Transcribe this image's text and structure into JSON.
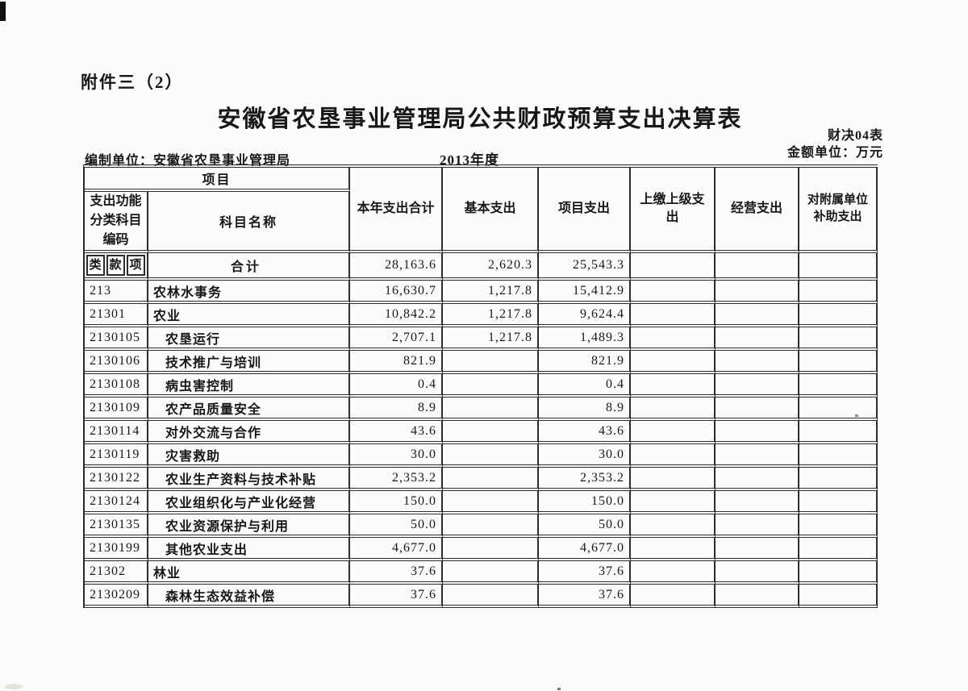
{
  "page": {
    "attachment_label": "附件三（2）",
    "title": "安徽省农垦事业管理局公共财政预算支出决算表",
    "form_code": "财决04表",
    "unit_note": "金额单位：万元",
    "prepared_by_label": "编制单位：",
    "prepared_by_value": "安徽省农垦事业管理局",
    "fiscal_year": "2013年度"
  },
  "table": {
    "header": {
      "project_group_label": "项目",
      "code_column_label": "支出功能分类科目编码",
      "code_sub_labels": [
        "类",
        "款",
        "项"
      ],
      "subject_name_label": "科目名称",
      "value_columns": [
        "本年支出合计",
        "基本支出",
        "项目支出",
        "上缴上级支出",
        "经营支出",
        "对附属单位补助支出"
      ]
    },
    "rows": [
      {
        "code": "",
        "name": "合计",
        "is_total": true,
        "indent": false,
        "values": [
          "28,163.6",
          "2,620.3",
          "25,543.3",
          "",
          "",
          ""
        ]
      },
      {
        "code": "213",
        "name": "农林水事务",
        "is_total": false,
        "indent": false,
        "values": [
          "16,630.7",
          "1,217.8",
          "15,412.9",
          "",
          "",
          ""
        ]
      },
      {
        "code": "21301",
        "name": "农业",
        "is_total": false,
        "indent": false,
        "values": [
          "10,842.2",
          "1,217.8",
          "9,624.4",
          "",
          "",
          ""
        ]
      },
      {
        "code": "2130105",
        "name": "农垦运行",
        "is_total": false,
        "indent": true,
        "values": [
          "2,707.1",
          "1,217.8",
          "1,489.3",
          "",
          "",
          ""
        ]
      },
      {
        "code": "2130106",
        "name": "技术推广与培训",
        "is_total": false,
        "indent": true,
        "values": [
          "821.9",
          "",
          "821.9",
          "",
          "",
          ""
        ]
      },
      {
        "code": "2130108",
        "name": "病虫害控制",
        "is_total": false,
        "indent": true,
        "values": [
          "0.4",
          "",
          "0.4",
          "",
          "",
          ""
        ]
      },
      {
        "code": "2130109",
        "name": "农产品质量安全",
        "is_total": false,
        "indent": true,
        "values": [
          "8.9",
          "",
          "8.9",
          "",
          "",
          ""
        ]
      },
      {
        "code": "2130114",
        "name": "对外交流与合作",
        "is_total": false,
        "indent": true,
        "values": [
          "43.6",
          "",
          "43.6",
          "",
          "",
          ""
        ]
      },
      {
        "code": "2130119",
        "name": "灾害救助",
        "is_total": false,
        "indent": true,
        "values": [
          "30.0",
          "",
          "30.0",
          "",
          "",
          ""
        ]
      },
      {
        "code": "2130122",
        "name": "农业生产资料与技术补贴",
        "is_total": false,
        "indent": true,
        "values": [
          "2,353.2",
          "",
          "2,353.2",
          "",
          "",
          ""
        ]
      },
      {
        "code": "2130124",
        "name": "农业组织化与产业化经营",
        "is_total": false,
        "indent": true,
        "values": [
          "150.0",
          "",
          "150.0",
          "",
          "",
          ""
        ]
      },
      {
        "code": "2130135",
        "name": "农业资源保护与利用",
        "is_total": false,
        "indent": true,
        "values": [
          "50.0",
          "",
          "50.0",
          "",
          "",
          ""
        ]
      },
      {
        "code": "2130199",
        "name": "其他农业支出",
        "is_total": false,
        "indent": true,
        "values": [
          "4,677.0",
          "",
          "4,677.0",
          "",
          "",
          ""
        ]
      },
      {
        "code": "21302",
        "name": "林业",
        "is_total": false,
        "indent": false,
        "values": [
          "37.6",
          "",
          "37.6",
          "",
          "",
          ""
        ]
      },
      {
        "code": "2130209",
        "name": "森林生态效益补偿",
        "is_total": false,
        "indent": true,
        "values": [
          "37.6",
          "",
          "37.6",
          "",
          "",
          ""
        ]
      }
    ]
  }
}
